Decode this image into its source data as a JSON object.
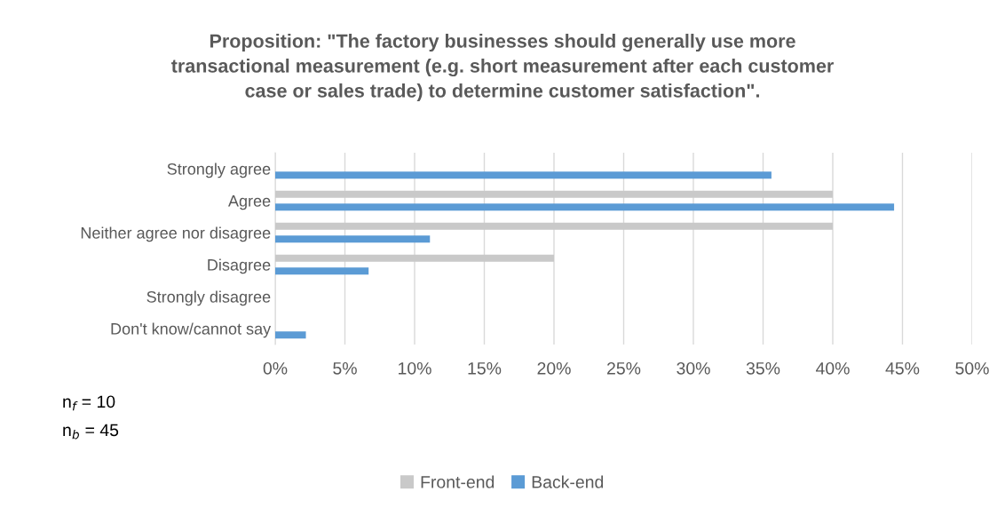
{
  "chart_data": {
    "type": "bar",
    "orientation": "horizontal",
    "title": "Proposition: \"The factory businesses should generally use more transactional measurement (e.g. short measurement after each customer case or sales trade) to determine customer satisfaction\".",
    "categories": [
      "Strongly agree",
      "Agree",
      "Neither agree nor disagree",
      "Disagree",
      "Strongly disagree",
      "Don't know/cannot say"
    ],
    "series": [
      {
        "name": "Front-end",
        "color": "#c9c9c9",
        "values": [
          0,
          40,
          40,
          20,
          0,
          0
        ]
      },
      {
        "name": "Back-end",
        "color": "#5b9bd5",
        "values": [
          35.6,
          44.4,
          11.1,
          6.7,
          0,
          2.2
        ]
      }
    ],
    "xlim": [
      0,
      50
    ],
    "xticks": [
      {
        "value": 0,
        "label": "0%"
      },
      {
        "value": 5,
        "label": "5%"
      },
      {
        "value": 10,
        "label": "10%"
      },
      {
        "value": 15,
        "label": "15%"
      },
      {
        "value": 20,
        "label": "20%"
      },
      {
        "value": 25,
        "label": "25%"
      },
      {
        "value": 30,
        "label": "30%"
      },
      {
        "value": 35,
        "label": "35%"
      },
      {
        "value": 40,
        "label": "40%"
      },
      {
        "value": 45,
        "label": "45%"
      },
      {
        "value": 50,
        "label": "50%"
      }
    ],
    "grid": "x",
    "legend": "bottom",
    "annotations": [
      "n$_{f}$ = 10",
      "n$_{b}$ = 45"
    ]
  }
}
